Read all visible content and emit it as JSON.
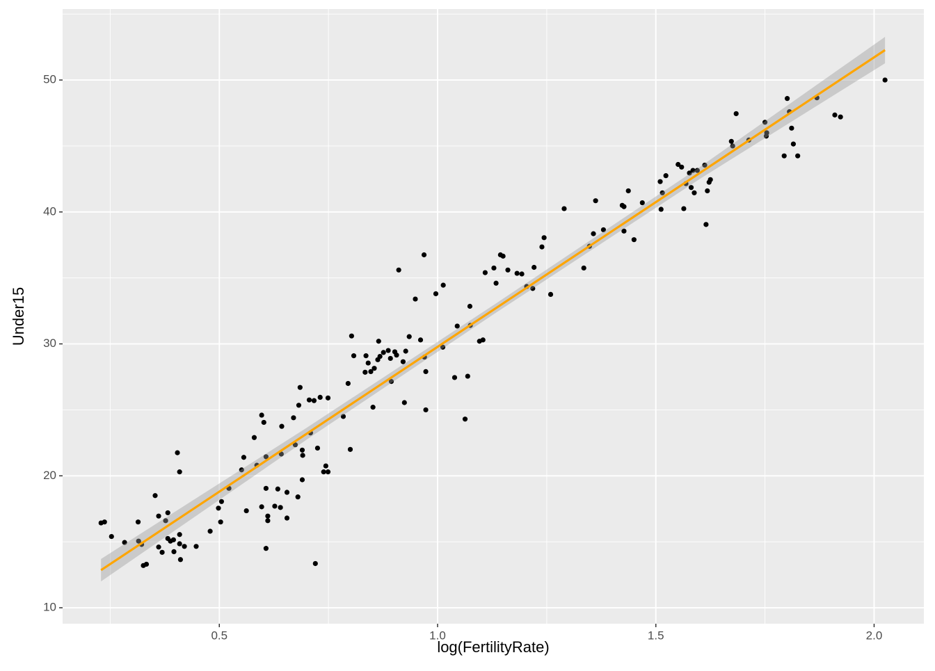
{
  "chart_data": {
    "type": "scatter",
    "xlabel": "log(FertilityRate)",
    "ylabel": "Under15",
    "xlim": [
      0.141,
      2.114
    ],
    "ylim": [
      8.79,
      55.38
    ],
    "xticks": [
      0.5,
      {
        "value": 1.0,
        "label": "1.0"
      },
      1.5,
      {
        "value": 2.0,
        "label": "2.0"
      }
    ],
    "yticks": [
      10,
      20,
      30,
      40,
      50
    ],
    "grid": true,
    "color": "#000000",
    "x": [
      0.229,
      0.237,
      0.253,
      0.283,
      0.314,
      0.315,
      0.322,
      0.326,
      0.333,
      0.353,
      0.361,
      0.361,
      0.369,
      0.377,
      0.382,
      0.382,
      0.388,
      0.395,
      0.396,
      0.404,
      0.409,
      0.409,
      0.409,
      0.411,
      0.42,
      0.447,
      0.479,
      0.498,
      0.503,
      0.505,
      0.522,
      0.551,
      0.556,
      0.562,
      0.58,
      0.586,
      0.597,
      0.597,
      0.602,
      0.607,
      0.607,
      0.607,
      0.611,
      0.611,
      0.627,
      0.634,
      0.64,
      0.642,
      0.643,
      0.655,
      0.655,
      0.67,
      0.674,
      0.68,
      0.682,
      0.685,
      0.69,
      0.691,
      0.69,
      0.706,
      0.709,
      0.717,
      0.72,
      0.725,
      0.731,
      0.739,
      0.744,
      0.749,
      0.749,
      0.784,
      0.795,
      0.8,
      0.803,
      0.808,
      0.834,
      0.836,
      0.841,
      0.847,
      0.852,
      0.855,
      0.863,
      0.865,
      0.868,
      0.876,
      0.887,
      0.892,
      0.894,
      0.902,
      0.906,
      0.911,
      0.921,
      0.924,
      0.927,
      0.935,
      0.949,
      0.961,
      0.969,
      0.97,
      0.973,
      0.973,
      0.996,
      1.012,
      1.013,
      1.039,
      1.045,
      1.063,
      1.069,
      1.074,
      1.075,
      1.096,
      1.104,
      1.109,
      1.129,
      1.134,
      1.144,
      1.15,
      1.161,
      1.182,
      1.193,
      1.204,
      1.218,
      1.221,
      1.239,
      1.244,
      1.259,
      1.29,
      1.335,
      1.348,
      1.357,
      1.362,
      1.38,
      1.423,
      1.427,
      1.427,
      1.437,
      1.45,
      1.469,
      1.51,
      1.512,
      1.515,
      1.523,
      1.551,
      1.559,
      1.564,
      1.569,
      1.577,
      1.581,
      1.585,
      1.588,
      1.595,
      1.612,
      1.615,
      1.618,
      1.622,
      1.625,
      1.673,
      1.676,
      1.684,
      1.713,
      1.75,
      1.753,
      1.754,
      1.794,
      1.801,
      1.806,
      1.811,
      1.815,
      1.825,
      1.869,
      1.91,
      1.923,
      2.025
    ],
    "values": [
      16.43,
      16.5,
      15.4,
      14.95,
      16.5,
      15.05,
      14.8,
      13.2,
      13.3,
      18.5,
      16.95,
      14.6,
      14.2,
      16.6,
      17.2,
      15.25,
      15.05,
      15.15,
      14.25,
      21.75,
      20.3,
      15.55,
      14.85,
      13.65,
      14.65,
      14.65,
      15.8,
      17.55,
      16.5,
      18.05,
      19.05,
      20.45,
      21.4,
      17.35,
      22.9,
      20.8,
      24.6,
      17.65,
      24.05,
      21.45,
      19.05,
      14.5,
      16.95,
      16.6,
      17.7,
      19.0,
      17.6,
      21.65,
      23.75,
      18.75,
      16.8,
      24.4,
      22.35,
      18.4,
      25.35,
      26.7,
      19.7,
      21.55,
      21.95,
      25.75,
      23.25,
      25.7,
      13.35,
      22.1,
      25.95,
      20.3,
      20.75,
      20.3,
      25.9,
      24.5,
      27.0,
      22.0,
      30.6,
      29.1,
      27.85,
      29.1,
      28.55,
      27.9,
      25.2,
      28.15,
      28.8,
      30.2,
      29.05,
      29.35,
      29.5,
      28.9,
      27.15,
      29.4,
      29.15,
      35.6,
      28.65,
      25.55,
      29.45,
      30.55,
      33.4,
      30.3,
      36.75,
      29.0,
      27.9,
      25.0,
      33.8,
      29.75,
      34.45,
      27.45,
      31.35,
      24.3,
      27.55,
      32.85,
      31.4,
      30.2,
      30.3,
      35.4,
      35.75,
      34.6,
      36.75,
      36.65,
      35.6,
      35.35,
      35.3,
      34.35,
      34.2,
      35.8,
      37.35,
      38.05,
      33.75,
      40.25,
      35.75,
      37.4,
      38.35,
      40.85,
      38.65,
      40.5,
      40.4,
      38.55,
      41.6,
      37.9,
      40.7,
      42.3,
      40.2,
      41.45,
      42.75,
      43.6,
      43.4,
      40.25,
      42.15,
      42.95,
      41.85,
      43.15,
      41.45,
      43.15,
      43.55,
      39.05,
      41.6,
      42.25,
      42.45,
      45.35,
      45.0,
      47.45,
      45.45,
      46.8,
      45.75,
      46.0,
      44.25,
      48.6,
      47.6,
      46.35,
      45.15,
      44.25,
      48.65,
      47.35,
      47.2,
      50.0
    ],
    "fit": {
      "color": "#FFA500",
      "band_color": "#999999",
      "x": [
        0.229,
        0.7,
        1.13,
        1.6,
        2.025
      ],
      "y": [
        12.85,
        23.19,
        32.63,
        42.94,
        52.27
      ],
      "lower": [
        12.0,
        22.74,
        32.28,
        42.49,
        51.27
      ],
      "upper": [
        13.7,
        23.64,
        32.98,
        43.39,
        53.27
      ]
    }
  }
}
